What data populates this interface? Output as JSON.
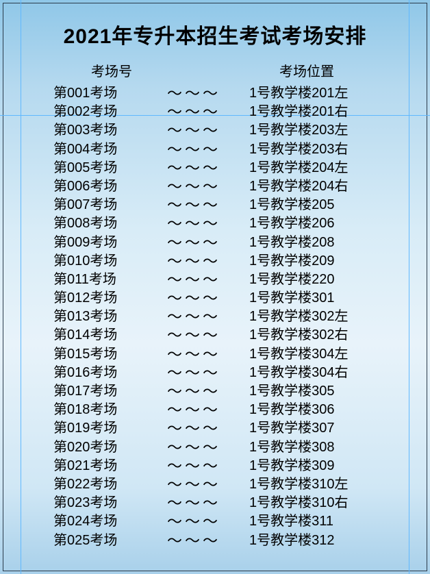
{
  "title": "2021年专升本招生考试考场安排",
  "headers": {
    "left": "考场号",
    "right": "考场位置"
  },
  "separator": "～～～",
  "colors": {
    "bg_top": "#8fc7e8",
    "bg_mid": "#e8f3fa",
    "bg_bottom": "#a8d0ea",
    "text": "#000000",
    "border": "#2a3a4a",
    "guide": "#5fb8ff"
  },
  "fontsize": {
    "title": 30,
    "header": 20,
    "row": 20
  },
  "rows": [
    {
      "num": "第001考场",
      "loc": "1号教学楼201左"
    },
    {
      "num": "第002考场",
      "loc": "1号教学楼201右"
    },
    {
      "num": "第003考场",
      "loc": "1号教学楼203左"
    },
    {
      "num": "第004考场",
      "loc": "1号教学楼203右"
    },
    {
      "num": "第005考场",
      "loc": "1号教学楼204左"
    },
    {
      "num": "第006考场",
      "loc": "1号教学楼204右"
    },
    {
      "num": "第007考场",
      "loc": "1号教学楼205"
    },
    {
      "num": "第008考场",
      "loc": "1号教学楼206"
    },
    {
      "num": "第009考场",
      "loc": "1号教学楼208"
    },
    {
      "num": "第010考场",
      "loc": "1号教学楼209"
    },
    {
      "num": "第011考场",
      "loc": "1号教学楼220"
    },
    {
      "num": "第012考场",
      "loc": "1号教学楼301"
    },
    {
      "num": "第013考场",
      "loc": "1号教学楼302左"
    },
    {
      "num": "第014考场",
      "loc": "1号教学楼302右"
    },
    {
      "num": "第015考场",
      "loc": "1号教学楼304左"
    },
    {
      "num": "第016考场",
      "loc": "1号教学楼304右"
    },
    {
      "num": "第017考场",
      "loc": "1号教学楼305"
    },
    {
      "num": "第018考场",
      "loc": "1号教学楼306"
    },
    {
      "num": "第019考场",
      "loc": "1号教学楼307"
    },
    {
      "num": "第020考场",
      "loc": "1号教学楼308"
    },
    {
      "num": "第021考场",
      "loc": "1号教学楼309"
    },
    {
      "num": "第022考场",
      "loc": "1号教学楼310左"
    },
    {
      "num": "第023考场",
      "loc": "1号教学楼310右"
    },
    {
      "num": "第024考场",
      "loc": "1号教学楼311"
    },
    {
      "num": "第025考场",
      "loc": "1号教学楼312"
    }
  ]
}
